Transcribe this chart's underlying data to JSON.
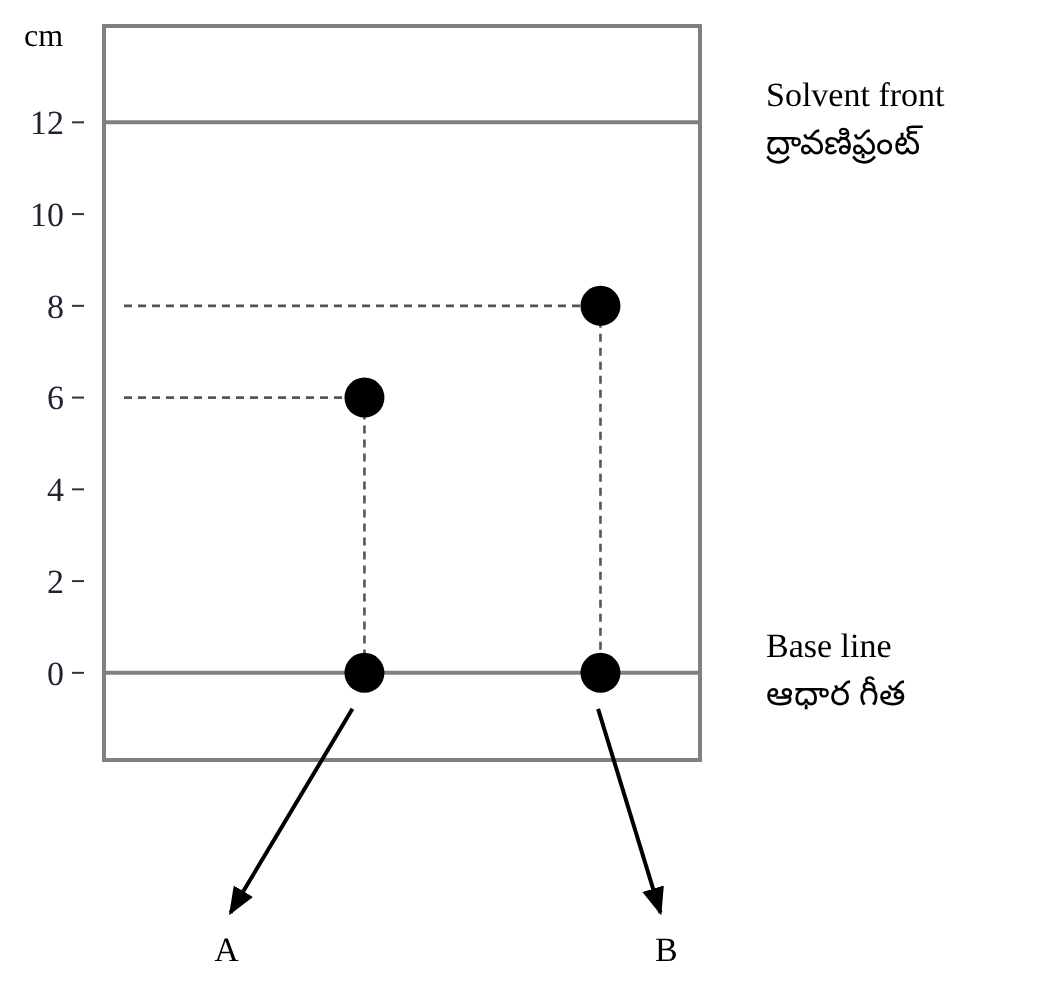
{
  "chart_data": {
    "type": "scatter",
    "ylabel": "cm",
    "categories": [
      "A",
      "B"
    ],
    "series": [
      {
        "color": "#000000",
        "values": [
          0,
          0
        ]
      },
      {
        "color": "#000000",
        "values": [
          6,
          8
        ]
      }
    ],
    "marker": "circle",
    "ylim": [
      -1.9,
      14.1
    ],
    "yticks": [
      0,
      2,
      4,
      6,
      8,
      10,
      12
    ],
    "grid": false,
    "ref_lines": [
      {
        "axis": "y",
        "value": 12,
        "label": "Solvent front\nద్రావణిఫ్రంట్",
        "color": "#808080"
      },
      {
        "axis": "y",
        "value": 0,
        "label": "Base line\nఆధార గీత",
        "color": "#808080"
      },
      {
        "axis": "y",
        "value": 6,
        "color": "#555555",
        "line_style": "dashed"
      },
      {
        "axis": "y",
        "value": 8,
        "color": "#555555",
        "line_style": "dashed"
      }
    ]
  }
}
